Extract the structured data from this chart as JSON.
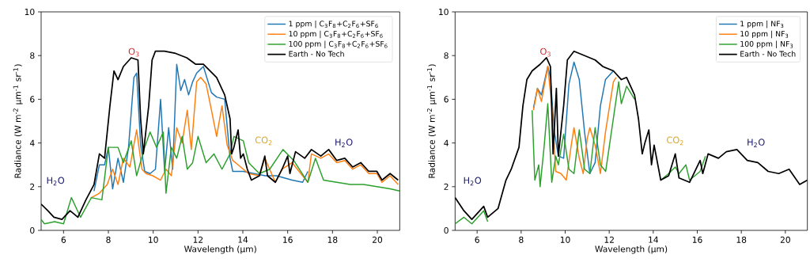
{
  "chart_data": [
    {
      "type": "line",
      "xlabel": "Wavelength (μm)",
      "ylabel": "Radiance (W m$^{-2}$ μm$^{-1}$ sr$^{-1}$)",
      "xlim": [
        5,
        21
      ],
      "ylim": [
        0,
        10
      ],
      "xticks": [
        6,
        8,
        10,
        12,
        14,
        16,
        18,
        20
      ],
      "yticks": [
        0,
        2,
        4,
        6,
        8,
        10
      ],
      "legend": "top right",
      "grid": false,
      "marker": "none",
      "line_style": "solid",
      "annotations": [
        "H$_{2}$O",
        "O$_{3}$",
        "CO$_{2}$",
        "H$_{2}$O"
      ],
      "series": [
        {
          "name": "1 ppm | C$_{3}$F$_{8}$+C$_{2}$F$_{6}$+SF$_{6}$",
          "color": "#1f77b4",
          "x": [
            7.36,
            7.6,
            7.83,
            8.0,
            8.19,
            8.43,
            8.67,
            8.9,
            9.14,
            9.26,
            9.44,
            9.62,
            9.86,
            10.1,
            10.33,
            10.51,
            10.69,
            10.87,
            11.05,
            11.23,
            11.4,
            11.58,
            11.76,
            11.94,
            12.24,
            12.6,
            12.83,
            13.19,
            13.43,
            13.55,
            14.02,
            14.5,
            15.0,
            15.5,
            16.2,
            16.67,
            16.9
          ],
          "values": [
            1.8,
            3.0,
            3.0,
            3.8,
            1.9,
            3.3,
            2.2,
            3.8,
            7.0,
            7.2,
            3.9,
            2.7,
            2.6,
            2.8,
            6.0,
            2.7,
            4.7,
            2.8,
            7.6,
            6.4,
            6.9,
            6.2,
            6.8,
            7.2,
            7.5,
            6.3,
            6.1,
            6.0,
            3.3,
            2.7,
            2.7,
            2.6,
            2.5,
            2.5,
            2.3,
            2.2,
            2.7
          ]
        },
        {
          "name": "10 ppm | C$_{3}$F$_{8}$+C$_{2}$F$_{6}$+SF$_{6}$",
          "color": "#ff7f0e",
          "x": [
            7.24,
            7.6,
            7.95,
            8.19,
            8.43,
            8.67,
            8.96,
            9.26,
            9.5,
            9.68,
            9.98,
            10.33,
            10.57,
            10.81,
            11.05,
            11.29,
            11.52,
            11.7,
            11.94,
            12.12,
            12.36,
            12.6,
            12.83,
            13.07,
            13.3,
            13.55,
            13.79,
            14.02,
            14.26,
            14.74,
            14.98,
            15.45,
            15.75,
            16.2,
            16.43,
            16.9,
            17.06,
            17.48,
            17.83,
            18.19,
            18.55,
            18.9,
            19.26,
            19.62,
            19.98,
            20.21,
            20.57,
            20.93
          ],
          "values": [
            1.5,
            1.7,
            2.1,
            2.8,
            2.1,
            3.3,
            2.9,
            4.6,
            2.8,
            2.6,
            2.5,
            2.3,
            2.8,
            2.5,
            4.7,
            4.0,
            5.5,
            3.7,
            6.8,
            7.0,
            6.7,
            5.5,
            4.3,
            5.7,
            3.9,
            3.2,
            3.0,
            2.8,
            2.6,
            2.5,
            3.3,
            2.2,
            2.8,
            3.1,
            2.8,
            2.2,
            3.5,
            3.3,
            3.5,
            3.1,
            3.2,
            2.8,
            3.0,
            2.6,
            2.6,
            2.2,
            2.5,
            2.1
          ]
        },
        {
          "name": "100 ppm | C$_{3}$F$_{8}$+C$_{2}$F$_{6}$+SF$_{6}$",
          "color": "#2ca02c",
          "x": [
            5.0,
            5.15,
            5.6,
            6.0,
            6.35,
            6.76,
            7.24,
            7.71,
            8.0,
            8.43,
            8.67,
            9.02,
            9.26,
            9.62,
            9.86,
            10.15,
            10.45,
            10.57,
            10.81,
            11.05,
            11.29,
            11.52,
            11.76,
            12.0,
            12.36,
            12.71,
            13.07,
            13.43,
            13.6,
            14.02,
            14.26,
            14.74,
            15.2,
            15.79,
            16.27,
            16.9,
            17.24,
            17.6,
            18.19,
            18.79,
            19.38,
            19.98,
            20.57,
            21.0
          ],
          "values": [
            0.5,
            0.3,
            0.4,
            0.3,
            1.5,
            0.6,
            1.5,
            1.4,
            3.8,
            3.8,
            3.1,
            4.1,
            2.5,
            3.8,
            4.5,
            3.8,
            4.5,
            1.7,
            3.8,
            3.3,
            4.3,
            2.8,
            3.1,
            4.3,
            3.1,
            3.5,
            2.8,
            3.5,
            4.3,
            4.1,
            3.1,
            2.6,
            2.8,
            3.7,
            3.2,
            2.2,
            3.3,
            2.3,
            2.2,
            2.1,
            2.1,
            2.0,
            1.9,
            1.8
          ]
        },
        {
          "name": "Earth - No Tech",
          "color": "#000000",
          "x": [
            5.0,
            5.3,
            5.57,
            5.93,
            6.29,
            6.64,
            7.0,
            7.36,
            7.6,
            7.83,
            8.07,
            8.25,
            8.43,
            8.67,
            9.02,
            9.32,
            9.44,
            9.56,
            9.8,
            9.95,
            10.1,
            10.5,
            11.0,
            11.5,
            11.9,
            12.24,
            12.83,
            13.19,
            13.43,
            13.5,
            13.6,
            13.79,
            13.9,
            14.02,
            14.2,
            14.38,
            14.74,
            14.98,
            15.1,
            15.45,
            15.75,
            16.0,
            16.1,
            16.35,
            16.76,
            17.06,
            17.48,
            17.83,
            18.19,
            18.55,
            18.9,
            19.26,
            19.62,
            19.98,
            20.21,
            20.57,
            20.93
          ],
          "values": [
            1.2,
            0.9,
            0.6,
            0.5,
            0.9,
            0.6,
            1.4,
            2.1,
            3.5,
            3.3,
            5.7,
            7.3,
            6.9,
            7.5,
            7.9,
            7.8,
            5.1,
            3.5,
            5.7,
            7.8,
            8.2,
            8.2,
            8.1,
            7.9,
            7.6,
            7.6,
            7.0,
            6.2,
            5.1,
            3.5,
            3.8,
            4.6,
            3.3,
            3.5,
            2.8,
            2.3,
            2.5,
            3.4,
            2.5,
            2.2,
            2.8,
            3.4,
            2.6,
            3.6,
            3.3,
            3.7,
            3.4,
            3.7,
            3.2,
            3.3,
            2.9,
            3.1,
            2.7,
            2.7,
            2.3,
            2.6,
            2.3
          ]
        }
      ]
    },
    {
      "type": "line",
      "xlabel": "Wavelength (μm)",
      "ylabel": "Radiance (W m$^{-2}$ μm$^{-1}$ sr$^{-1}$)",
      "xlim": [
        5,
        21
      ],
      "ylim": [
        0,
        10
      ],
      "xticks": [
        6,
        8,
        10,
        12,
        14,
        16,
        18,
        20
      ],
      "yticks": [
        0,
        2,
        4,
        6,
        8,
        10
      ],
      "legend": "top right",
      "grid": false,
      "marker": "none",
      "line_style": "solid",
      "annotations": [
        "H$_{2}$O",
        "O$_{3}$",
        "CO$_{2}$",
        "H$_{2}$O"
      ],
      "series": [
        {
          "name": "1 ppm | NF$_{3}$",
          "color": "#1f77b4",
          "x": [
            8.56,
            8.74,
            8.92,
            9.21,
            9.33,
            9.51,
            9.69,
            9.93,
            10.17,
            10.4,
            10.64,
            10.88,
            11.12,
            11.36,
            11.6,
            11.83,
            12.19
          ],
          "values": [
            5.6,
            6.5,
            6.2,
            7.5,
            7.0,
            4.5,
            3.4,
            3.3,
            6.7,
            7.7,
            6.9,
            4.5,
            2.6,
            3.1,
            5.7,
            6.9,
            7.3
          ]
        },
        {
          "name": "10 ppm | NF$_{3}$",
          "color": "#ff7f0e",
          "x": [
            8.56,
            8.74,
            8.92,
            9.21,
            9.39,
            9.57,
            9.81,
            10.05,
            10.29,
            10.4,
            10.64,
            10.82,
            11.0,
            11.12,
            11.36,
            11.6,
            11.83,
            12.19,
            12.31
          ],
          "values": [
            5.5,
            6.5,
            5.9,
            7.5,
            5.7,
            2.7,
            2.6,
            2.3,
            4.0,
            4.7,
            3.3,
            2.6,
            4.2,
            4.7,
            3.9,
            2.6,
            4.5,
            6.8,
            7.0
          ]
        },
        {
          "name": "100 ppm | NF$_{3}$",
          "color": "#2ca02c",
          "x": [
            5.0,
            5.4,
            5.76,
            6.3,
            6.48,
            6.95,
            8.5,
            8.62,
            8.8,
            8.86,
            9.04,
            9.21,
            9.39,
            9.57,
            9.69,
            9.93,
            10.17,
            10.4,
            10.64,
            10.88,
            11.12,
            11.36,
            11.6,
            11.84,
            12.43,
            12.55,
            12.79,
            13.15,
            13.33,
            14.34,
            14.7,
            15.0,
            15.17,
            15.48,
            15.65,
            16.13,
            16.37
          ],
          "values": [
            0.3,
            0.6,
            0.3,
            0.9,
            0.4,
            null,
            5.5,
            2.3,
            3.0,
            2.0,
            3.8,
            5.8,
            2.2,
            3.4,
            3.0,
            4.4,
            2.8,
            2.6,
            4.6,
            2.8,
            2.6,
            4.7,
            3.0,
            2.7,
            6.8,
            5.8,
            6.6,
            6.0,
            null,
            2.3,
            2.6,
            2.9,
            2.6,
            3.0,
            2.3,
            2.7,
            3.4
          ]
        },
        {
          "name": "Earth - No Tech",
          "color": "#000000",
          "x": [
            5.0,
            5.4,
            5.76,
            6.3,
            6.48,
            6.95,
            7.31,
            7.55,
            7.9,
            8.08,
            8.26,
            8.5,
            8.86,
            9.15,
            9.33,
            9.45,
            9.6,
            9.69,
            9.93,
            10.1,
            10.4,
            10.88,
            11.36,
            11.71,
            12.19,
            12.55,
            12.79,
            13.15,
            13.33,
            13.5,
            13.62,
            13.8,
            13.92,
            14.04,
            14.34,
            14.7,
            15.0,
            15.17,
            15.65,
            16.13,
            16.25,
            16.49,
            16.96,
            17.32,
            17.8,
            18.27,
            18.75,
            19.22,
            19.7,
            20.17,
            20.65,
            21.0
          ],
          "values": [
            1.5,
            0.9,
            0.5,
            1.1,
            0.6,
            1.0,
            2.3,
            2.8,
            3.8,
            5.7,
            6.9,
            7.3,
            7.6,
            7.9,
            7.5,
            3.5,
            6.5,
            3.4,
            5.7,
            7.8,
            8.2,
            8.0,
            7.8,
            7.5,
            7.3,
            6.9,
            7.0,
            6.2,
            5.1,
            3.5,
            4.0,
            4.6,
            3.0,
            3.9,
            2.3,
            2.5,
            3.5,
            2.4,
            2.2,
            3.2,
            2.6,
            3.5,
            3.3,
            3.6,
            3.7,
            3.2,
            3.1,
            2.7,
            2.6,
            2.8,
            2.1,
            2.3
          ]
        }
      ]
    }
  ]
}
